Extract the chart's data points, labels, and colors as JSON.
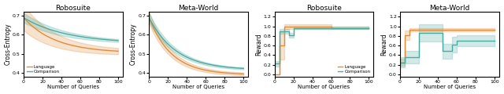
{
  "color_lang": "#E08C3A",
  "color_comp": "#4AABA0",
  "alpha_fill": 0.25,
  "titles_ce": [
    "Robosuite",
    "Meta-World"
  ],
  "titles_rew": [
    "Robosuite",
    "Meta-World"
  ],
  "xlabel": "Number of Queries",
  "ylabel_ce": "Cross-Entropy",
  "ylabel_rew": "Reward",
  "legend_labels": [
    "Language",
    "Comparison"
  ],
  "ce_xlim": [
    0,
    105
  ],
  "ce_ylim": [
    0.38,
    0.72
  ],
  "rew_xlim": [
    0,
    105
  ],
  "rew_ylim": [
    -0.05,
    1.3
  ]
}
